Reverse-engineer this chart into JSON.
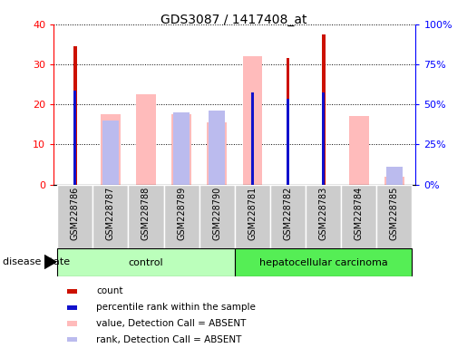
{
  "title": "GDS3087 / 1417408_at",
  "samples": [
    "GSM228786",
    "GSM228787",
    "GSM228788",
    "GSM228789",
    "GSM228790",
    "GSM228781",
    "GSM228782",
    "GSM228783",
    "GSM228784",
    "GSM228785"
  ],
  "groups": [
    "control",
    "control",
    "control",
    "control",
    "control",
    "hepatocellular carcinoma",
    "hepatocellular carcinoma",
    "hepatocellular carcinoma",
    "hepatocellular carcinoma",
    "hepatocellular carcinoma"
  ],
  "count": [
    34.5,
    0,
    0,
    0,
    0,
    0,
    31.5,
    37.5,
    0,
    0
  ],
  "percentile_rank": [
    23.5,
    0,
    0,
    0,
    0,
    23.0,
    21.5,
    23.0,
    0,
    0
  ],
  "value_absent": [
    0,
    17.5,
    22.5,
    17.5,
    15.5,
    32.0,
    0,
    0,
    17.0,
    2.0
  ],
  "rank_absent": [
    0,
    16.0,
    0,
    18.0,
    18.5,
    0,
    0,
    0,
    0,
    4.5
  ],
  "ylim_left": [
    0,
    40
  ],
  "ylim_right": [
    0,
    100
  ],
  "yticks_left": [
    0,
    10,
    20,
    30,
    40
  ],
  "yticks_right": [
    0,
    25,
    50,
    75,
    100
  ],
  "ytick_labels_right": [
    "0%",
    "25%",
    "50%",
    "75%",
    "100%"
  ],
  "color_count": "#cc1100",
  "color_percentile": "#1111cc",
  "color_value_absent": "#ffbbbb",
  "color_rank_absent": "#bbbbee",
  "color_control_bg": "#bbffbb",
  "color_cancer_bg": "#55ee55",
  "color_samplebg": "#cccccc",
  "group_label": "disease state",
  "legend_items": [
    {
      "label": "count",
      "color": "#cc1100"
    },
    {
      "label": "percentile rank within the sample",
      "color": "#1111cc"
    },
    {
      "label": "value, Detection Call = ABSENT",
      "color": "#ffbbbb"
    },
    {
      "label": "rank, Detection Call = ABSENT",
      "color": "#bbbbee"
    }
  ]
}
